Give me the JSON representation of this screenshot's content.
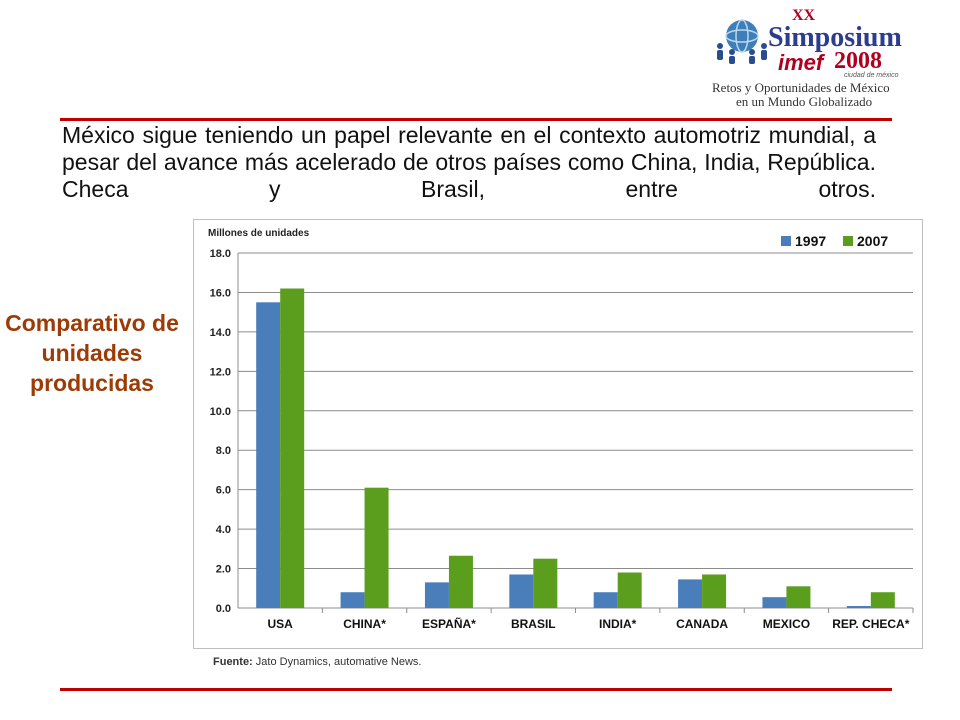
{
  "header": {
    "logo": {
      "edition": "XX",
      "name": "Simposium",
      "brand": "imef",
      "year": "2008",
      "city": "ciudad de méxico",
      "tagline_1": "Retos y Oportunidades de México",
      "tagline_2": "en un Mundo Globalizado"
    }
  },
  "intro_text": "México sigue teniendo un papel relevante en el contexto automotriz mundial, a pesar del avance más acelerado de otros países como China, India, República. Checa y Brasil, entre otros.",
  "side_title": "Comparativo de unidades producidas",
  "source": {
    "label": "Fuente:",
    "text": "Jato Dynamics, automative News."
  },
  "colors": {
    "series_1997": "#4a7ebb",
    "series_2007": "#5b9e1d",
    "rule": "#c00000",
    "side_title": "#9c3b06"
  },
  "chart_data": {
    "type": "bar",
    "title": "",
    "ylabel": "Millones de unidades",
    "xlabel": "",
    "ylim": [
      0,
      18
    ],
    "yticks": [
      "0.0",
      "2.0",
      "4.0",
      "6.0",
      "8.0",
      "10.0",
      "12.0",
      "14.0",
      "16.0",
      "18.0"
    ],
    "grid": true,
    "legend_position": "top-right",
    "categories": [
      "USA",
      "CHINA*",
      "ESPAÑA*",
      "BRASIL",
      "INDIA*",
      "CANADA",
      "MEXICO",
      "REP. CHECA*"
    ],
    "series": [
      {
        "name": "1997",
        "values": [
          15.5,
          0.8,
          1.3,
          1.7,
          0.8,
          1.45,
          0.55,
          0.1
        ]
      },
      {
        "name": "2007",
        "values": [
          16.2,
          6.1,
          2.65,
          2.5,
          1.8,
          1.7,
          1.1,
          0.8
        ]
      }
    ]
  }
}
